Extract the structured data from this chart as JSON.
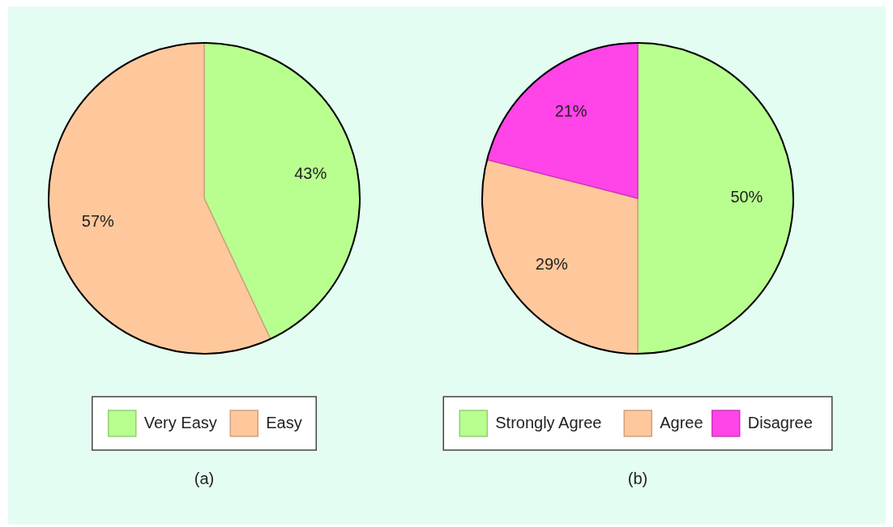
{
  "chart_data": [
    {
      "type": "pie",
      "title": "(a)",
      "categories": [
        "Very Easy",
        "Easy"
      ],
      "values": [
        43,
        57
      ],
      "colors": [
        "#b8ff90",
        "#ffc89c"
      ],
      "value_labels": [
        "43%",
        "57%"
      ],
      "legend": "bottom"
    },
    {
      "type": "pie",
      "title": "(b)",
      "categories": [
        "Strongly Agree",
        "Agree",
        "Disagree"
      ],
      "values": [
        50,
        29,
        21
      ],
      "colors": [
        "#b8ff90",
        "#ffc89c",
        "#ff44e8"
      ],
      "value_labels": [
        "50%",
        "29%",
        "21%"
      ],
      "legend": "bottom"
    }
  ]
}
